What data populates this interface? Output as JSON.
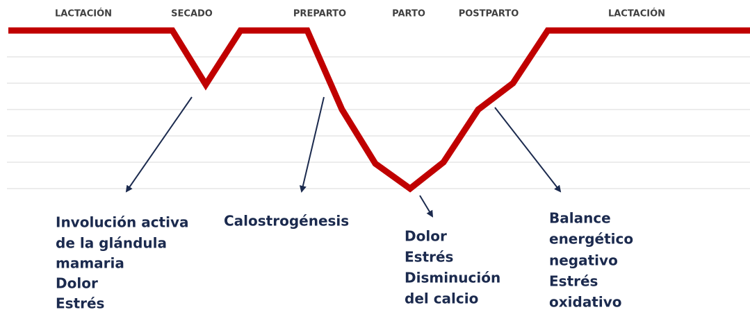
{
  "phases": [
    "LACTACIÓN",
    "SECADO",
    "PREPARTO",
    "PARTO",
    "POSTPARTO",
    "LACTACIÓN"
  ],
  "annotations": [
    {
      "lines": [
        "Involución activa",
        "de la glándula",
        "mamaria",
        "Dolor",
        "Estrés"
      ]
    },
    {
      "lines": [
        "Calostrogénesis"
      ]
    },
    {
      "lines": [
        "Dolor",
        "Estrés",
        "Disminución",
        "del calcio"
      ]
    },
    {
      "lines": [
        "Balance",
        "energético",
        "negativo",
        "Estrés",
        "oxidativo"
      ]
    }
  ]
}
